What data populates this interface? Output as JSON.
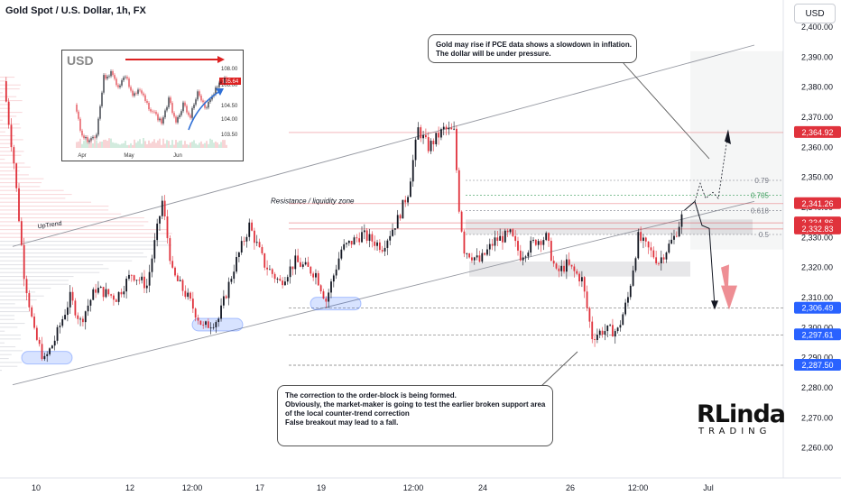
{
  "header": {
    "title": "Gold Spot / U.S. Dollar, 1h, FX",
    "currency_button": "USD"
  },
  "colors": {
    "up": "#131722",
    "down": "#e0323c",
    "channel": "#9598a1",
    "price_tag": "#e0323c",
    "blue_tag": "#2962ff",
    "highlight": "#2962ff",
    "fib_label": "#787b86",
    "fib_705": "#3a9c5a"
  },
  "chart_data": {
    "type": "candlestick",
    "symbol": "XAUUSD",
    "timeframe": "1h",
    "x_ticks": [
      "10",
      "12",
      "12:00",
      "17",
      "19",
      "12:00",
      "24",
      "26",
      "12:00",
      "Jul"
    ],
    "y_ticks": [
      2260,
      2270,
      2280,
      2290,
      2300,
      2310,
      2320,
      2330,
      2340,
      2350,
      2360,
      2370,
      2380,
      2390,
      2400
    ],
    "y_tick_labels": [
      "2,260.00",
      "2,270.00",
      "2,280.00",
      "2,290.00",
      "2,300.00",
      "2,310.00",
      "2,320.00",
      "2,330.00",
      "2,340.00",
      "2,350.00",
      "2,360.00",
      "2,370.00",
      "2,380.00",
      "2,390.00",
      "2,400.00"
    ],
    "ylim": [
      2253,
      2406
    ],
    "price_path": [
      {
        "t": 0,
        "p": 2382
      },
      {
        "t": 2,
        "p": 2355
      },
      {
        "t": 4,
        "p": 2318
      },
      {
        "t": 6,
        "p": 2298
      },
      {
        "t": 8,
        "p": 2289
      },
      {
        "t": 10,
        "p": 2296
      },
      {
        "t": 13,
        "p": 2310
      },
      {
        "t": 15,
        "p": 2302
      },
      {
        "t": 18,
        "p": 2313
      },
      {
        "t": 22,
        "p": 2310
      },
      {
        "t": 25,
        "p": 2318
      },
      {
        "t": 28,
        "p": 2314
      },
      {
        "t": 31,
        "p": 2342
      },
      {
        "t": 33,
        "p": 2318
      },
      {
        "t": 36,
        "p": 2310
      },
      {
        "t": 39,
        "p": 2300
      },
      {
        "t": 42,
        "p": 2303
      },
      {
        "t": 45,
        "p": 2320
      },
      {
        "t": 48,
        "p": 2334
      },
      {
        "t": 51,
        "p": 2321
      },
      {
        "t": 54,
        "p": 2315
      },
      {
        "t": 57,
        "p": 2322
      },
      {
        "t": 61,
        "p": 2318
      },
      {
        "t": 63,
        "p": 2309
      },
      {
        "t": 66,
        "p": 2326
      },
      {
        "t": 70,
        "p": 2331
      },
      {
        "t": 74,
        "p": 2327
      },
      {
        "t": 77,
        "p": 2336
      },
      {
        "t": 79,
        "p": 2345
      },
      {
        "t": 81,
        "p": 2366
      },
      {
        "t": 83,
        "p": 2360
      },
      {
        "t": 86,
        "p": 2366
      },
      {
        "t": 88,
        "p": 2365
      },
      {
        "t": 89,
        "p": 2340
      },
      {
        "t": 90,
        "p": 2326
      },
      {
        "t": 93,
        "p": 2322
      },
      {
        "t": 96,
        "p": 2329
      },
      {
        "t": 99,
        "p": 2331
      },
      {
        "t": 101,
        "p": 2324
      },
      {
        "t": 104,
        "p": 2329
      },
      {
        "t": 106,
        "p": 2330
      },
      {
        "t": 108,
        "p": 2318
      },
      {
        "t": 110,
        "p": 2321
      },
      {
        "t": 113,
        "p": 2316
      },
      {
        "t": 115,
        "p": 2297
      },
      {
        "t": 117,
        "p": 2299
      },
      {
        "t": 120,
        "p": 2299
      },
      {
        "t": 122,
        "p": 2310
      },
      {
        "t": 124,
        "p": 2330
      },
      {
        "t": 126,
        "p": 2326
      },
      {
        "t": 128,
        "p": 2322
      },
      {
        "t": 131,
        "p": 2330
      },
      {
        "t": 133,
        "p": 2339
      }
    ],
    "price_labels": [
      {
        "label": "2,364.92",
        "value": 2364.92,
        "style": "red"
      },
      {
        "label": "2,341.26",
        "value": 2341.26,
        "style": "red"
      },
      {
        "label": "2,334.86",
        "value": 2334.86,
        "style": "red"
      },
      {
        "label": "2,332.83",
        "value": 2332.83,
        "style": "red"
      },
      {
        "label": "2,306.49",
        "value": 2306.49,
        "style": "blue"
      },
      {
        "label": "2,297.61",
        "value": 2297.61,
        "style": "blue"
      },
      {
        "label": "2,287.50",
        "value": 2287.5,
        "style": "blue"
      }
    ],
    "fib_levels": [
      {
        "label": "0.79",
        "value": 2349
      },
      {
        "label": "0.705",
        "value": 2344
      },
      {
        "label": "0.618",
        "value": 2339
      },
      {
        "label": "0.5",
        "value": 2331
      }
    ],
    "annotations": {
      "uptrend": "UpTrend",
      "resistance": "Resistance / liquidity zone"
    }
  },
  "notes": {
    "top": [
      "Gold may rise if PCE data shows a slowdown in inflation.",
      "The dollar will be under pressure."
    ],
    "bottom": [
      "The correction to the order-block is being formed.",
      "Obviously, the market-maker is going to test the earlier broken support area",
      "of the local counter-trend correction",
      "False breakout may lead to a fall."
    ]
  },
  "inset": {
    "label": "USD",
    "x_ticks": [
      "Apr",
      "May",
      "Jun"
    ],
    "y_ticks": [
      "108.00",
      "106.00",
      "104.50",
      "104.00",
      "103.50"
    ],
    "current_tag": "105.64"
  },
  "logo": {
    "main": "RLinda",
    "sub": "TRADING"
  }
}
